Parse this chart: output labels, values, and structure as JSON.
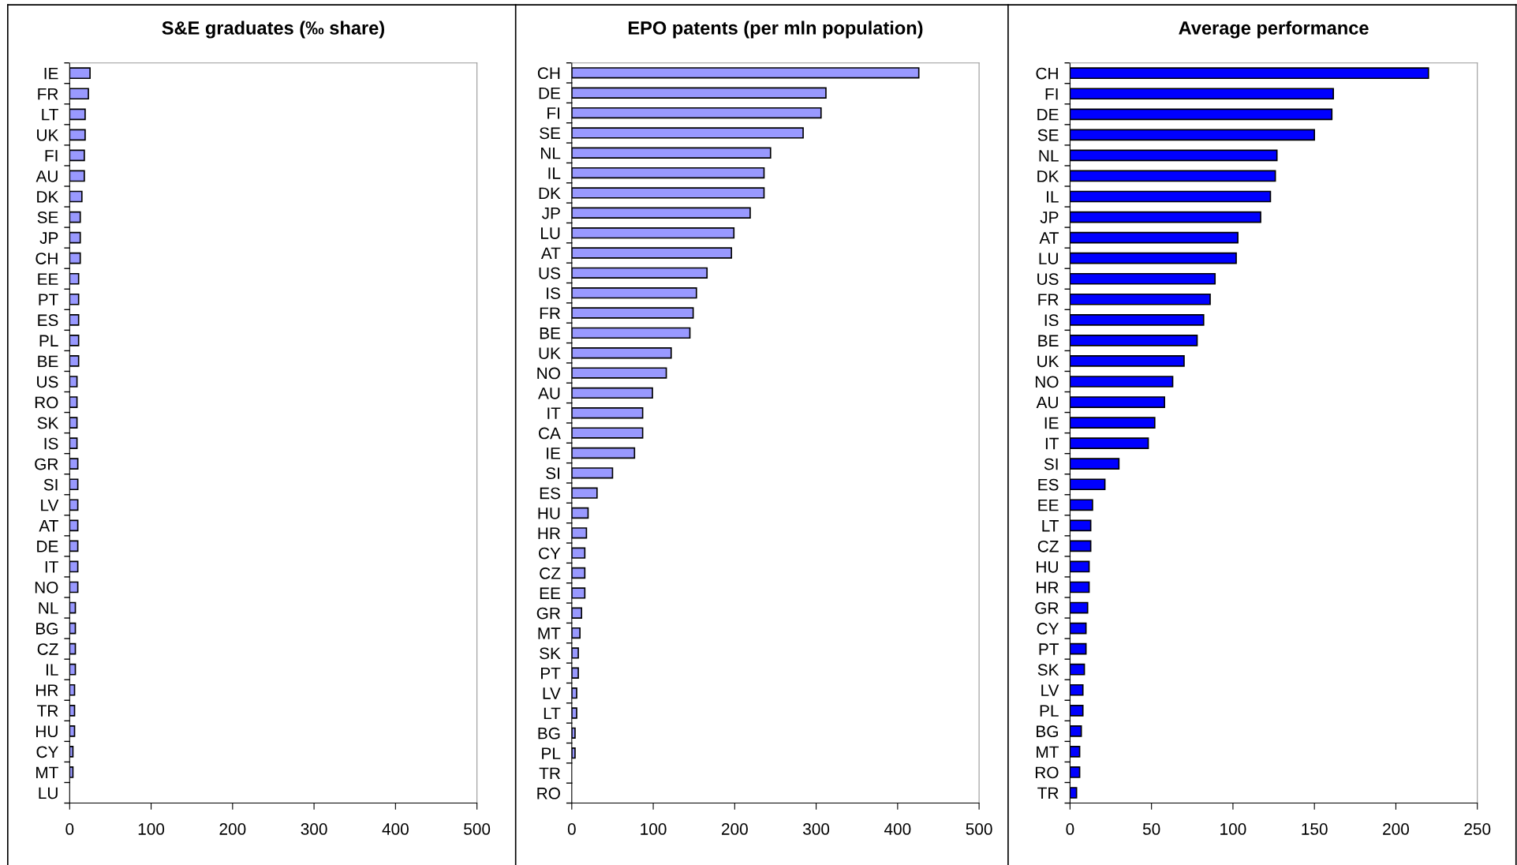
{
  "chart_data": [
    {
      "type": "bar",
      "orientation": "horizontal",
      "title": "S&E graduates (‰ share)",
      "categories": [
        "IE",
        "FR",
        "LT",
        "UK",
        "FI",
        "AU",
        "DK",
        "SE",
        "JP",
        "CH",
        "EE",
        "PT",
        "ES",
        "PL",
        "BE",
        "US",
        "RO",
        "SK",
        "IS",
        "GR",
        "SI",
        "LV",
        "AT",
        "DE",
        "IT",
        "NO",
        "NL",
        "BG",
        "CZ",
        "IL",
        "HR",
        "TR",
        "HU",
        "CY",
        "MT",
        "LU"
      ],
      "values": [
        25,
        23,
        19,
        19,
        18,
        18,
        15,
        13,
        13,
        13,
        11,
        11,
        11,
        11,
        11,
        9,
        9,
        9,
        9,
        10,
        10,
        10,
        10,
        10,
        10,
        10,
        7,
        7,
        7,
        7,
        6,
        6,
        6,
        4,
        4,
        0
      ],
      "color": "#9999ff",
      "xlim": [
        0,
        500
      ],
      "xticks": [
        0,
        100,
        200,
        300,
        400,
        500
      ],
      "grid": false,
      "legend": false
    },
    {
      "type": "bar",
      "orientation": "horizontal",
      "title": "EPO patents (per mln population)",
      "categories": [
        "CH",
        "DE",
        "FI",
        "SE",
        "NL",
        "IL",
        "DK",
        "JP",
        "LU",
        "AT",
        "US",
        "IS",
        "FR",
        "BE",
        "UK",
        "NO",
        "AU",
        "IT",
        "CA",
        "IE",
        "SI",
        "ES",
        "HU",
        "HR",
        "CY",
        "CZ",
        "EE",
        "GR",
        "MT",
        "SK",
        "PT",
        "LV",
        "LT",
        "BG",
        "PL",
        "TR",
        "RO"
      ],
      "values": [
        426,
        312,
        306,
        284,
        244,
        236,
        236,
        219,
        199,
        196,
        166,
        153,
        149,
        145,
        122,
        116,
        99,
        87,
        87,
        77,
        50,
        31,
        20,
        18,
        16,
        16,
        16,
        12,
        10,
        8,
        8,
        6,
        6,
        4,
        4,
        0,
        0
      ],
      "color": "#9999ff",
      "xlim": [
        0,
        500
      ],
      "xticks": [
        0,
        100,
        200,
        300,
        400,
        500
      ],
      "grid": false,
      "legend": false
    },
    {
      "type": "bar",
      "orientation": "horizontal",
      "title": "Average performance",
      "categories": [
        "CH",
        "FI",
        "DE",
        "SE",
        "NL",
        "DK",
        "IL",
        "JP",
        "AT",
        "LU",
        "US",
        "FR",
        "IS",
        "BE",
        "UK",
        "NO",
        "AU",
        "IE",
        "IT",
        "SI",
        "ES",
        "EE",
        "LT",
        "CZ",
        "HU",
        "HR",
        "GR",
        "CY",
        "PT",
        "SK",
        "LV",
        "PL",
        "BG",
        "MT",
        "RO",
        "TR"
      ],
      "values": [
        220,
        161.6,
        160.7,
        150,
        127,
        126,
        123,
        117,
        103,
        102,
        89,
        86,
        82,
        78,
        70,
        63,
        58,
        52,
        48,
        30,
        21.4,
        13.8,
        12.7,
        12.7,
        11.7,
        11.7,
        10.8,
        9.8,
        9.8,
        8.8,
        7.9,
        7.9,
        6.9,
        5.9,
        5.9,
        4
      ],
      "color": "#0000ff",
      "xlim": [
        0,
        250
      ],
      "xticks": [
        0,
        50,
        100,
        150,
        200,
        250
      ],
      "grid": false,
      "legend": false
    }
  ]
}
